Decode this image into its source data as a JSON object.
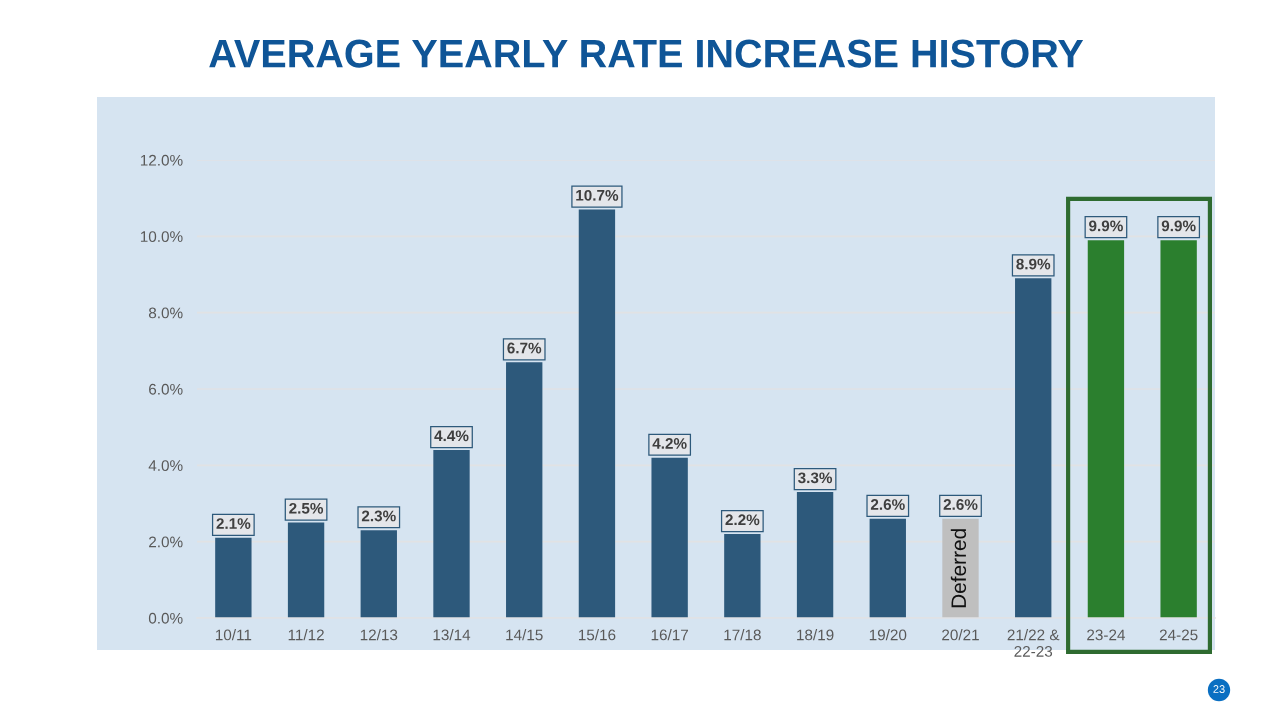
{
  "chart_data": {
    "type": "bar",
    "title": "AVERAGE YEARLY RATE INCREASE HISTORY",
    "categories": [
      "10/11",
      "11/12",
      "12/13",
      "13/14",
      "14/15",
      "15/16",
      "16/17",
      "17/18",
      "18/19",
      "19/20",
      "20/21",
      "21/22 &\n22-23",
      "23-24",
      "24-25"
    ],
    "values": [
      2.1,
      2.5,
      2.3,
      4.4,
      6.7,
      10.7,
      4.2,
      2.2,
      3.3,
      2.6,
      2.6,
      8.9,
      9.9,
      9.9
    ],
    "colors": [
      "#2d597b",
      "#2d597b",
      "#2d597b",
      "#2d597b",
      "#2d597b",
      "#2d597b",
      "#2d597b",
      "#2d597b",
      "#2d597b",
      "#2d597b",
      "#bfbfbf",
      "#2d597b",
      "#2b7f2e",
      "#2b7f2e"
    ],
    "value_labels": [
      "2.1%",
      "2.5%",
      "2.3%",
      "4.4%",
      "6.7%",
      "10.7%",
      "4.2%",
      "2.2%",
      "3.3%",
      "2.6%",
      "2.6%",
      "8.9%",
      "9.9%",
      "9.9%"
    ],
    "ylim": [
      0,
      12
    ],
    "yticks": [
      {
        "value": 0,
        "label": "0.0%"
      },
      {
        "value": 2,
        "label": "2.0%"
      },
      {
        "value": 4,
        "label": "4.0%"
      },
      {
        "value": 6,
        "label": "6.0%"
      },
      {
        "value": 8,
        "label": "8.0%"
      },
      {
        "value": 10,
        "label": "10.0%"
      },
      {
        "value": 12,
        "label": "12.0%"
      }
    ],
    "grid": "y",
    "annotations": [
      {
        "text": "Deferred",
        "x": "20/21",
        "y": 2.6
      },
      "23"
    ]
  }
}
